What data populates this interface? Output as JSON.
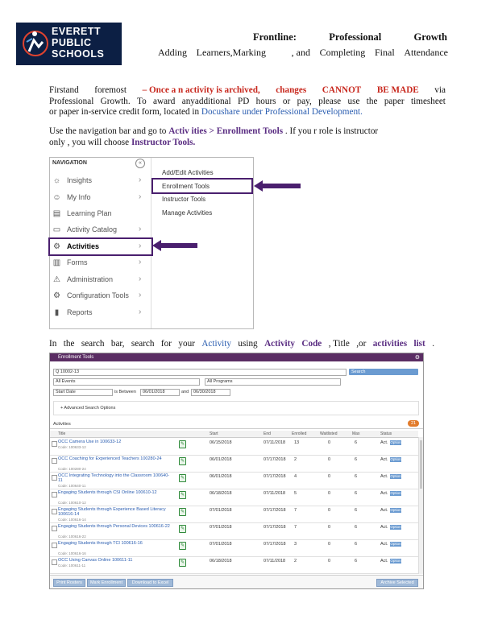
{
  "logo": {
    "line1": "EVERETT",
    "line2": "PUBLIC",
    "line3": "SCHOOLS"
  },
  "header": {
    "title_words": [
      "Frontline:",
      "Professional",
      "Growth"
    ],
    "subtitle_words": [
      "Adding",
      "Learners,Marking",
      ", and",
      "Completing",
      "Final",
      "Attendance"
    ]
  },
  "para1": {
    "l1a": "Firstand",
    "l1b": "foremost",
    "l1c": "– Once a n activity is archived,",
    "l1d": "changes",
    "l1e": "CANNOT",
    "l1f": "BE MADE",
    "l1g": "via",
    "l2": [
      "Professional",
      "Growth.",
      "To",
      "award",
      "anyadditional",
      "PD",
      "hours",
      "or",
      "pay,",
      "please",
      "use",
      "the",
      "paper",
      "timesheet"
    ],
    "l3a": "or paper in-service credit form, located in",
    "l3b": "Docushare under Professional Development."
  },
  "para2": {
    "l1a": "Use the navigation bar and go to",
    "l1b": "Activ ities",
    "l1c": "> Enrollment",
    "l1d": "Tools",
    "l1e": ". If you r role is instructor",
    "l2a": "only , you will choose",
    "l2b": "Instructor Tools."
  },
  "nav": {
    "title": "NAVIGATION",
    "collapse": "«",
    "items": [
      {
        "label": "Insights",
        "icon": "☼"
      },
      {
        "label": "My Info",
        "icon": "☺"
      },
      {
        "label": "Learning Plan",
        "icon": "▤"
      },
      {
        "label": "Activity Catalog",
        "icon": "▭"
      },
      {
        "label": "Activities",
        "icon": "⚙"
      },
      {
        "label": "Forms",
        "icon": "▥"
      },
      {
        "label": "Administration",
        "icon": "⚠"
      },
      {
        "label": "Configuration Tools",
        "icon": "⚙"
      },
      {
        "label": "Reports",
        "icon": "▮"
      }
    ],
    "submenu": [
      "Add/Edit Activities",
      "Enrollment Tools",
      "Instructor Tools",
      "Manage Activities"
    ],
    "chevron": "›"
  },
  "para3": {
    "words": [
      "In",
      "the",
      "search",
      "bar,",
      "search",
      "for",
      "your"
    ],
    "b1": "Activity",
    "w2": "using",
    "b2": "Activity",
    "b3": "Code",
    "w3": ", Title",
    "w4": ",or",
    "b4": "activities",
    "b5": "list",
    "w5": "."
  },
  "enroll": {
    "title": "Enrollment Tools",
    "gear": "⚙",
    "search_value": "Q 10002-13",
    "search_btn": "Search",
    "filter_events": "All Events",
    "filter_programs": "All Programs",
    "date_type": "Start Date",
    "between": "is Between",
    "date_from": "06/01/2018",
    "and": "and",
    "date_to": "06/30/2018",
    "advanced": "+ Advanced Search Options",
    "activities_label": "Activities",
    "count": "21",
    "columns": [
      "Title",
      "Start",
      "End",
      "Enrolled",
      "Waitlisted",
      "Max",
      "Status"
    ],
    "rows": [
      {
        "title": "OCC Camera Use in 100633-12",
        "sub": "Code: 100633-12",
        "start": "06/15/2018",
        "end": "07/11/2018",
        "enr": "13",
        "wait": "0",
        "max": "6",
        "st": "Act."
      },
      {
        "title": "OCC Coaching for Experienced Teachers 100280-24",
        "sub": "Code: 100280-24",
        "start": "06/01/2018",
        "end": "07/17/2018",
        "enr": "2",
        "wait": "0",
        "max": "6",
        "st": "Act."
      },
      {
        "title": "OCC Integrating Technology into the Classroom 100640-11",
        "sub": "Code: 100640-11",
        "start": "06/01/2018",
        "end": "07/17/2018",
        "enr": "4",
        "wait": "0",
        "max": "6",
        "st": "Act."
      },
      {
        "title": "Engaging Students through CSI Online 100610-12",
        "sub": "Code: 100610-12",
        "start": "06/18/2018",
        "end": "07/11/2018",
        "enr": "5",
        "wait": "0",
        "max": "6",
        "st": "Act."
      },
      {
        "title": "Engaging Students through Experience Based Literacy 100616-14",
        "sub": "Code: 100616-14",
        "start": "07/01/2018",
        "end": "07/17/2018",
        "enr": "7",
        "wait": "0",
        "max": "6",
        "st": "Act."
      },
      {
        "title": "Engaging Students through Personal Devices 100616-22",
        "sub": "Code: 100616-22",
        "start": "07/01/2018",
        "end": "07/17/2018",
        "enr": "7",
        "wait": "0",
        "max": "6",
        "st": "Act."
      },
      {
        "title": "Engaging Students through TCI 100616-16",
        "sub": "Code: 100616-16",
        "start": "07/01/2018",
        "end": "07/17/2018",
        "enr": "3",
        "wait": "0",
        "max": "6",
        "st": "Act."
      },
      {
        "title": "OCC Using Canvas Online 100611-11",
        "sub": "Code: 100611-11",
        "start": "06/18/2018",
        "end": "07/11/2018",
        "enr": "2",
        "wait": "0",
        "max": "6",
        "st": "Act."
      }
    ],
    "option_label": "Option",
    "footer_btns": [
      "Print Rosters",
      "Mark Enrollment",
      "Download to Excel"
    ],
    "footer_right": "Archive Selected"
  }
}
